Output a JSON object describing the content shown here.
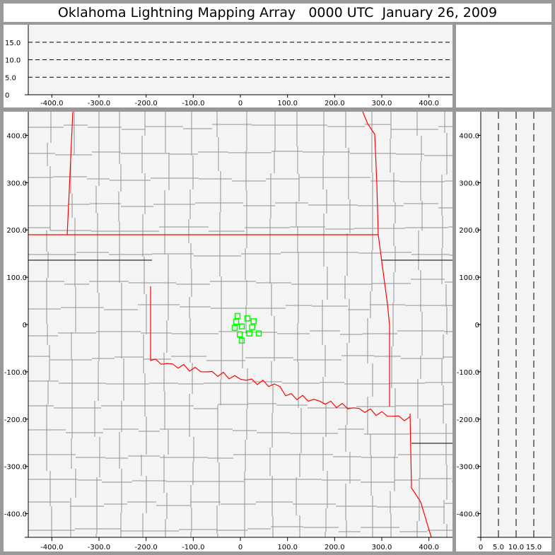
{
  "title": "Oklahoma Lightning Mapping Array   0000 UTC  January 26, 2009",
  "chart_data": [
    {
      "type": "line",
      "panel": "altitude-vs-x",
      "xlim": [
        -450,
        450
      ],
      "ylim": [
        0,
        20
      ],
      "xticks": [
        "-400.0",
        "-300.0",
        "-200.0",
        "-100.0",
        "0",
        "100.0",
        "200.0",
        "300.0",
        "400.0"
      ],
      "xtick_values": [
        -400,
        -300,
        -200,
        -100,
        0,
        100,
        200,
        300,
        400
      ],
      "yticks": [
        "0",
        "5.0",
        "10.0",
        "15.0"
      ],
      "ytick_values": [
        0,
        5,
        10,
        15
      ],
      "reference_lines": [
        5,
        10,
        15
      ],
      "grid": "dashed reference lines"
    },
    {
      "type": "scatter",
      "panel": "plan-view-map",
      "xlim": [
        -450,
        450
      ],
      "ylim": [
        -450,
        450
      ],
      "xticks": [
        "-400.0",
        "-300.0",
        "-200.0",
        "-100.0",
        "0",
        "100.0",
        "200.0",
        "300.0",
        "400.0"
      ],
      "xtick_values": [
        -400,
        -300,
        -200,
        -100,
        0,
        100,
        200,
        300,
        400
      ],
      "yticks": [
        "-400.0",
        "-300.0",
        "-200.0",
        "-100.0",
        "0",
        "100.0",
        "200.0",
        "300.0",
        "400.0"
      ],
      "ytick_values": [
        -400,
        -300,
        -200,
        -100,
        0,
        100,
        200,
        300,
        400
      ],
      "stations": [
        [
          -6,
          18
        ],
        [
          -9,
          6
        ],
        [
          15,
          13
        ],
        [
          28,
          7
        ],
        [
          -12,
          -7
        ],
        [
          3,
          -4
        ],
        [
          25,
          -6
        ],
        [
          -1,
          -21
        ],
        [
          19,
          -19
        ],
        [
          39,
          -19
        ],
        [
          3,
          -34
        ]
      ],
      "station_marker": "open square",
      "colors": {
        "stations": "#00ff00",
        "state_borders": "#ff0000",
        "county_lines": "#909090",
        "background": "#f4f4f4"
      }
    },
    {
      "type": "line",
      "panel": "y-vs-altitude",
      "xlim": [
        0,
        20
      ],
      "ylim": [
        -450,
        450
      ],
      "xticks": [
        "0",
        "5.0",
        "10.0",
        "15.0"
      ],
      "xtick_values": [
        0,
        5,
        10,
        15
      ],
      "yticks": [
        "-400.0",
        "-300.0",
        "-200.0",
        "-100.0",
        "0",
        "100.0",
        "200.0",
        "300.0",
        "400.0"
      ],
      "ytick_values": [
        -400,
        -300,
        -200,
        -100,
        0,
        100,
        200,
        300,
        400
      ],
      "reference_lines": [
        5,
        10,
        15
      ]
    }
  ]
}
